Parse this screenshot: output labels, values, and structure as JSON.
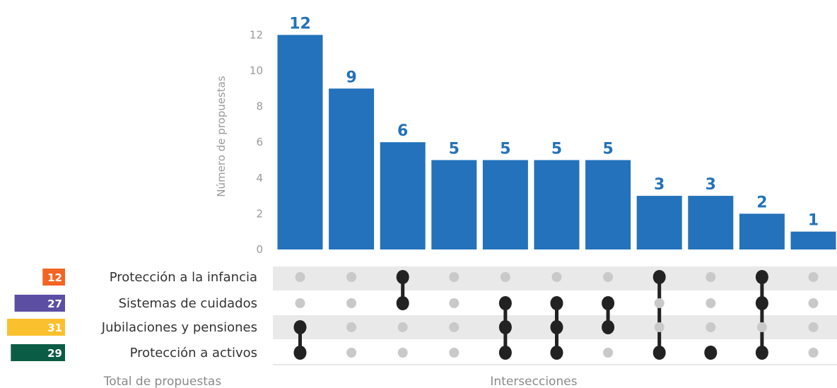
{
  "chart_data": {
    "type": "upset",
    "ylabel": "Número de propuestas",
    "yticks": [
      0,
      2,
      4,
      6,
      8,
      10,
      12
    ],
    "ylim": [
      0,
      12
    ],
    "bar_color": "#2372bb",
    "sets": [
      {
        "name": "Protección a la infancia",
        "total": 12,
        "color": "#f26522"
      },
      {
        "name": "Sistemas de cuidados",
        "total": 27,
        "color": "#5c4fa3"
      },
      {
        "name": "Jubilaciones y pensiones",
        "total": 31,
        "color": "#fbc02d"
      },
      {
        "name": "Protección a activos",
        "total": 29,
        "color": "#0b5c45"
      }
    ],
    "intersections": [
      {
        "value": 12,
        "sets": [
          2,
          3
        ]
      },
      {
        "value": 9,
        "sets": []
      },
      {
        "value": 6,
        "sets": [
          0,
          1
        ]
      },
      {
        "value": 5,
        "sets": []
      },
      {
        "value": 5,
        "sets": [
          1,
          2,
          3
        ]
      },
      {
        "value": 5,
        "sets": [
          1,
          2,
          3
        ]
      },
      {
        "value": 5,
        "sets": [
          1,
          2
        ]
      },
      {
        "value": 3,
        "sets": [
          0,
          3
        ]
      },
      {
        "value": 3,
        "sets": [
          3
        ]
      },
      {
        "value": 2,
        "sets": [
          0,
          1,
          3
        ]
      },
      {
        "value": 1,
        "sets": []
      }
    ],
    "xlabel": "Intersecciones",
    "totals_label": "Total de propuestas"
  }
}
